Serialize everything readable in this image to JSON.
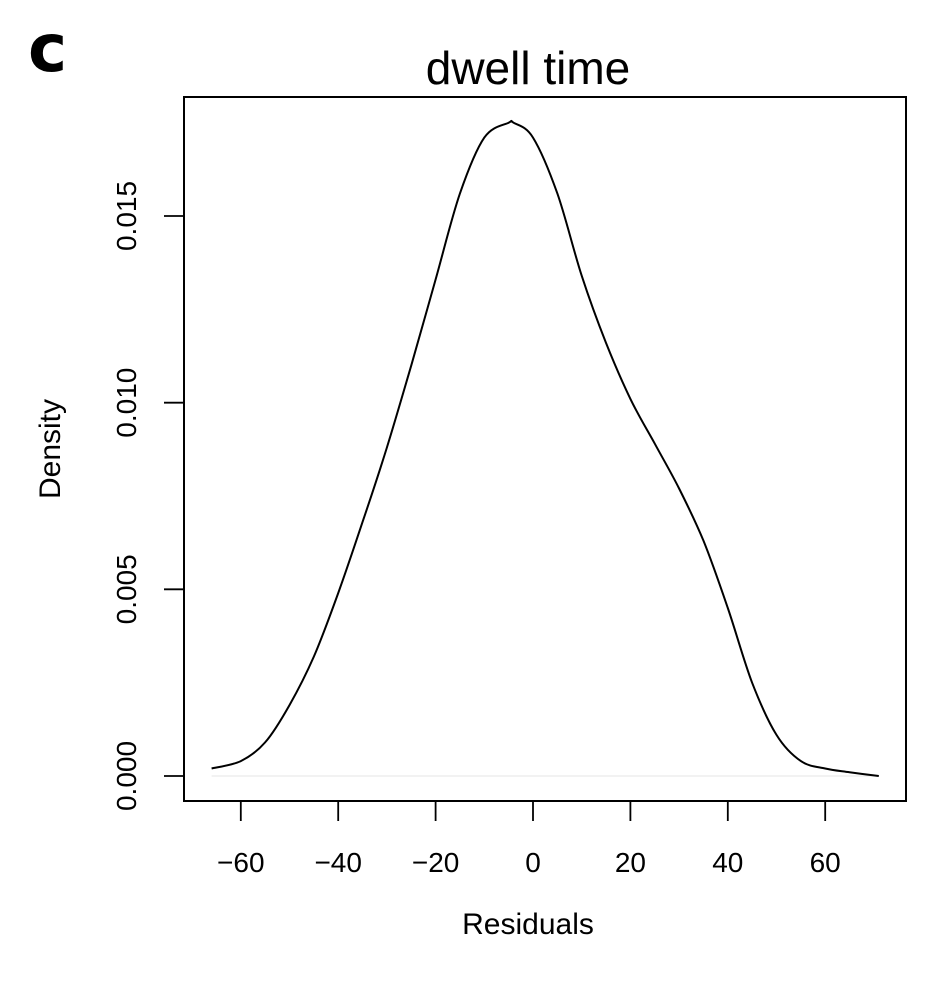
{
  "panel_label": "c",
  "chart_data": {
    "type": "line",
    "title": "dwell time",
    "xlabel": "Residuals",
    "ylabel": "Density",
    "xlim": [
      -66,
      71
    ],
    "ylim": [
      0,
      0.0175
    ],
    "x_ticks": [
      -60,
      -40,
      -20,
      0,
      20,
      40,
      60
    ],
    "x_tick_labels": [
      "−60",
      "−40",
      "−20",
      "0",
      "20",
      "40",
      "60"
    ],
    "y_ticks": [
      0,
      0.005,
      0.01,
      0.015
    ],
    "y_tick_labels": [
      "0.000",
      "0.005",
      "0.010",
      "0.015"
    ],
    "grid": false,
    "legend": false,
    "series": [
      {
        "x": [
          -66,
          -60,
          -55,
          -50,
          -45,
          -40,
          -35,
          -30,
          -25,
          -20,
          -15,
          -10,
          -5,
          -4,
          0,
          5,
          10,
          15,
          20,
          25,
          30,
          35,
          40,
          45,
          50,
          55,
          60,
          65,
          71
        ],
        "y": [
          0.0002,
          0.0004,
          0.0009,
          0.0019,
          0.0032,
          0.0049,
          0.0068,
          0.0088,
          0.011,
          0.0133,
          0.0156,
          0.0171,
          0.0175,
          0.0175,
          0.0171,
          0.0156,
          0.0134,
          0.0116,
          0.0101,
          0.0089,
          0.0077,
          0.0063,
          0.0045,
          0.0025,
          0.0011,
          0.0004,
          0.0002,
          0.0001,
          0.0
        ]
      }
    ]
  }
}
